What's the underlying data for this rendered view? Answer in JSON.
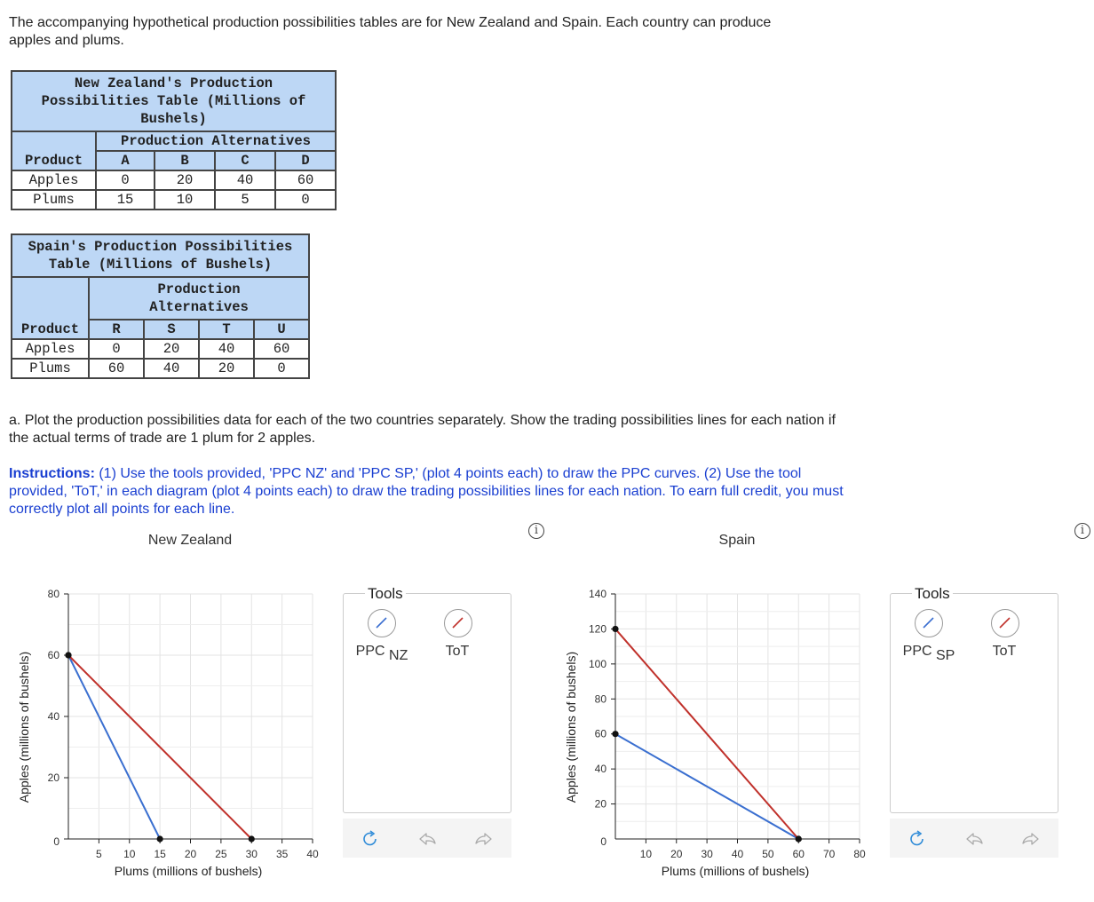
{
  "intro": "The accompanying hypothetical production possibilities tables are for New Zealand and Spain. Each country can produce apples and plums.",
  "nz_table": {
    "title": "New Zealand's Production Possibilities Table (Millions of Bushels)",
    "alt_header": "Production Alternatives",
    "product_label": "Product",
    "columns": [
      "A",
      "B",
      "C",
      "D"
    ],
    "rows": [
      {
        "name": "Apples",
        "values": [
          "0",
          "20",
          "40",
          "60"
        ]
      },
      {
        "name": "Plums",
        "values": [
          "15",
          "10",
          "5",
          "0"
        ]
      }
    ]
  },
  "sp_table": {
    "title": "Spain's Production Possibilities Table (Millions of Bushels)",
    "alt_header": "Production Alternatives",
    "product_label": "Product",
    "columns": [
      "R",
      "S",
      "T",
      "U"
    ],
    "rows": [
      {
        "name": "Apples",
        "values": [
          "0",
          "20",
          "40",
          "60"
        ]
      },
      {
        "name": "Plums",
        "values": [
          "60",
          "40",
          "20",
          "0"
        ]
      }
    ]
  },
  "question": "a. Plot the production possibilities data for each of the two countries separately. Show the trading possibilities lines for each nation if the actual terms of trade are 1 plum for 2 apples.",
  "instructions": {
    "lead": "Instructions:",
    "text": " (1) Use the tools provided, 'PPC NZ' and 'PPC SP,' (plot 4 points each) to draw the PPC curves. (2) Use the tool provided, 'ToT,' in each diagram (plot 4 points each) to draw the trading possibilities lines for each nation. To earn full credit, you must correctly plot all points for each line."
  },
  "info_glyph": "i",
  "colors": {
    "ppc": "#3a6fd0",
    "tot": "#c0312b",
    "header": "#bdd7f5",
    "instructions": "#1a3fd1"
  },
  "charts": [
    {
      "title": "New Zealand",
      "tools_label": "Tools",
      "ppc_tool": {
        "main": "PPC",
        "sub": "NZ"
      },
      "tot_tool": "ToT",
      "chart_data": {
        "type": "line",
        "title": "New Zealand",
        "xlabel": "Plums (millions of bushels)",
        "ylabel": "Apples (millions of bushels)",
        "xlim": [
          0,
          40
        ],
        "ylim": [
          0,
          80
        ],
        "xticks": [
          "5",
          "10",
          "15",
          "20",
          "25",
          "30",
          "35",
          "40"
        ],
        "xtick_values": [
          5,
          10,
          15,
          20,
          25,
          30,
          35,
          40
        ],
        "yticks": [
          "0",
          "20",
          "40",
          "60",
          "80"
        ],
        "ytick_values": [
          0,
          20,
          40,
          60,
          80
        ],
        "origin_label": "0",
        "grid": true,
        "series": [
          {
            "name": "PPC NZ",
            "points": [
              [
                0,
                60
              ],
              [
                15,
                0
              ]
            ]
          },
          {
            "name": "ToT",
            "points": [
              [
                0,
                60
              ],
              [
                30,
                0
              ]
            ]
          }
        ]
      }
    },
    {
      "title": "Spain",
      "tools_label": "Tools",
      "ppc_tool": {
        "main": "PPC",
        "sub": "SP"
      },
      "tot_tool": "ToT",
      "chart_data": {
        "type": "line",
        "title": "Spain",
        "xlabel": "Plums (millions of bushels)",
        "ylabel": "Apples (millions of bushels)",
        "xlim": [
          0,
          80
        ],
        "ylim": [
          0,
          140
        ],
        "xticks": [
          "10",
          "20",
          "30",
          "40",
          "50",
          "60",
          "70",
          "80"
        ],
        "xtick_values": [
          10,
          20,
          30,
          40,
          50,
          60,
          70,
          80
        ],
        "yticks": [
          "20",
          "40",
          "60",
          "80",
          "100",
          "120",
          "140"
        ],
        "ytick_values": [
          20,
          40,
          60,
          80,
          100,
          120,
          140
        ],
        "origin_label": "0",
        "grid": true,
        "series": [
          {
            "name": "PPC SP",
            "points": [
              [
                0,
                60
              ],
              [
                60,
                0
              ]
            ]
          },
          {
            "name": "ToT",
            "points": [
              [
                0,
                120
              ],
              [
                60,
                0
              ]
            ]
          }
        ]
      }
    }
  ]
}
